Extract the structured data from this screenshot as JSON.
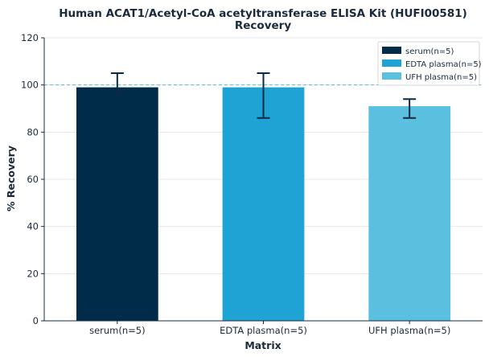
{
  "chart_data": {
    "type": "bar",
    "title": "Human ACAT1/Acetyl-CoA acetyltransferase ELISA Kit (HUFI00581)",
    "subtitle": "Recovery",
    "xlabel": "Matrix",
    "ylabel": "% Recovery",
    "ylim": [
      0,
      120
    ],
    "yticks": [
      0,
      20,
      40,
      60,
      80,
      100,
      120
    ],
    "categories": [
      "serum(n=5)",
      "EDTA plasma(n=5)",
      "UFH plasma(n=5)"
    ],
    "values": [
      99,
      99,
      91
    ],
    "error_low": [
      96,
      86,
      86
    ],
    "error_high": [
      105,
      105,
      94
    ],
    "colors": [
      "#002b49",
      "#1fa3d4",
      "#5bbfe0"
    ],
    "reference_line": 100,
    "grid": true,
    "legend": {
      "placement": "top-right",
      "entries": [
        "serum(n=5)",
        "EDTA plasma(n=5)",
        "UFH plasma(n=5)"
      ]
    }
  }
}
